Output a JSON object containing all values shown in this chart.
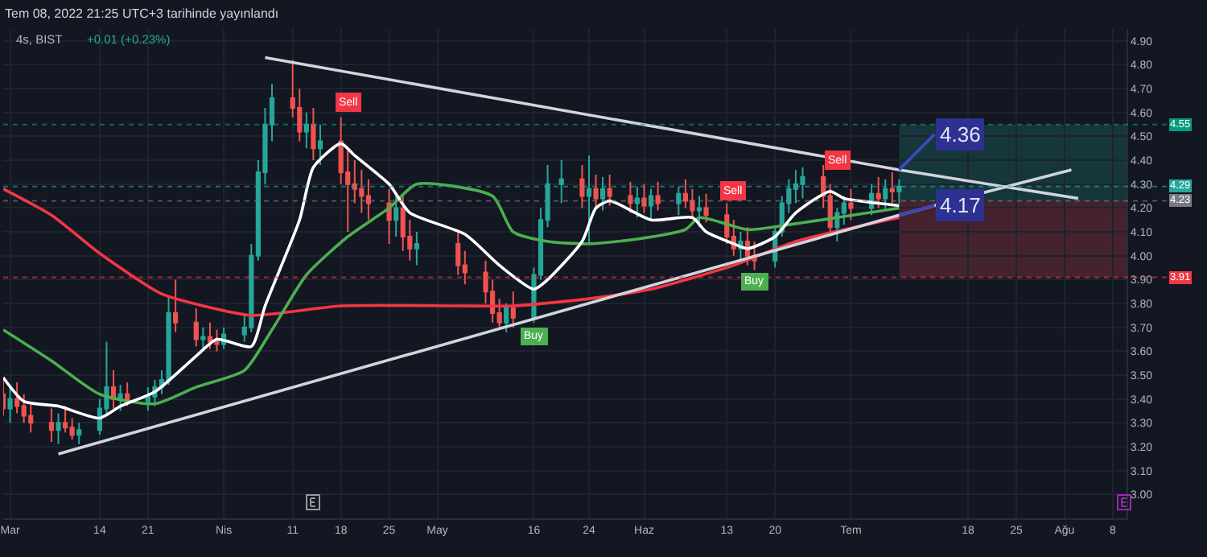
{
  "chart_data": {
    "type": "candlestick",
    "title": "Tem 08, 2022 21:25 UTC+3 tarihinde yayınlandı",
    "subtitle": "4s, BIST",
    "x": [
      "2022-02-28",
      "2022-03-01",
      "2022-03-02",
      "2022-03-03",
      "2022-03-04",
      "2022-03-07",
      "2022-03-08",
      "2022-03-09",
      "2022-03-10",
      "2022-03-11",
      "2022-03-14",
      "2022-03-15",
      "2022-03-16",
      "2022-03-17",
      "2022-03-18",
      "2022-03-21",
      "2022-03-22",
      "2022-03-23",
      "2022-03-24",
      "2022-03-25",
      "2022-03-28",
      "2022-03-29",
      "2022-03-30",
      "2022-03-31",
      "2022-04-01",
      "2022-04-04",
      "2022-04-05",
      "2022-04-06",
      "2022-04-07",
      "2022-04-08",
      "2022-04-11",
      "2022-04-12",
      "2022-04-13",
      "2022-04-14",
      "2022-04-15",
      "2022-04-18",
      "2022-04-19",
      "2022-04-20",
      "2022-04-21",
      "2022-04-22",
      "2022-04-25",
      "2022-04-26",
      "2022-04-27",
      "2022-04-28",
      "2022-04-29",
      "2022-05-05",
      "2022-05-06",
      "2022-05-09",
      "2022-05-10",
      "2022-05-11",
      "2022-05-12",
      "2022-05-13",
      "2022-05-16",
      "2022-05-17",
      "2022-05-18",
      "2022-05-20",
      "2022-05-23",
      "2022-05-24",
      "2022-05-25",
      "2022-05-26",
      "2022-05-27",
      "2022-05-30",
      "2022-05-31",
      "2022-06-01",
      "2022-06-02",
      "2022-06-03",
      "2022-06-06",
      "2022-06-07",
      "2022-06-08",
      "2022-06-09",
      "2022-06-10",
      "2022-06-13",
      "2022-06-14",
      "2022-06-15",
      "2022-06-16",
      "2022-06-17",
      "2022-06-20",
      "2022-06-21",
      "2022-06-22",
      "2022-06-23",
      "2022-06-24",
      "2022-06-27",
      "2022-06-28",
      "2022-06-29",
      "2022-06-30",
      "2022-07-01",
      "2022-07-04",
      "2022-07-05",
      "2022-07-06",
      "2022-07-07",
      "2022-07-08"
    ],
    "ohlc": [
      [
        3.42,
        3.48,
        3.33,
        3.36
      ],
      [
        3.36,
        3.45,
        3.3,
        3.4
      ],
      [
        3.4,
        3.47,
        3.34,
        3.37
      ],
      [
        3.37,
        3.42,
        3.3,
        3.33
      ],
      [
        3.33,
        3.38,
        3.26,
        3.3
      ],
      [
        3.3,
        3.36,
        3.22,
        3.27
      ],
      [
        3.27,
        3.34,
        3.21,
        3.3
      ],
      [
        3.3,
        3.37,
        3.26,
        3.28
      ],
      [
        3.28,
        3.32,
        3.23,
        3.25
      ],
      [
        3.25,
        3.3,
        3.21,
        3.27
      ],
      [
        3.27,
        3.4,
        3.25,
        3.36
      ],
      [
        3.36,
        3.64,
        3.34,
        3.45
      ],
      [
        3.45,
        3.52,
        3.36,
        3.4
      ],
      [
        3.4,
        3.46,
        3.35,
        3.42
      ],
      [
        3.42,
        3.47,
        3.37,
        3.39
      ],
      [
        3.39,
        3.45,
        3.35,
        3.41
      ],
      [
        3.41,
        3.48,
        3.37,
        3.45
      ],
      [
        3.45,
        3.52,
        3.42,
        3.48
      ],
      [
        3.48,
        3.83,
        3.46,
        3.76
      ],
      [
        3.76,
        3.9,
        3.68,
        3.72
      ],
      [
        3.72,
        3.78,
        3.62,
        3.65
      ],
      [
        3.65,
        3.7,
        3.6,
        3.66
      ],
      [
        3.66,
        3.72,
        3.61,
        3.64
      ],
      [
        3.64,
        3.69,
        3.6,
        3.63
      ],
      [
        3.63,
        3.7,
        3.61,
        3.67
      ],
      [
        3.67,
        3.75,
        3.64,
        3.7
      ],
      [
        3.7,
        4.05,
        3.68,
        4.0
      ],
      [
        4.0,
        4.4,
        3.98,
        4.35
      ],
      [
        4.35,
        4.62,
        4.3,
        4.55
      ],
      [
        4.55,
        4.72,
        4.48,
        4.66
      ],
      [
        4.66,
        4.82,
        4.58,
        4.62
      ],
      [
        4.62,
        4.7,
        4.48,
        4.52
      ],
      [
        4.52,
        4.6,
        4.45,
        4.55
      ],
      [
        4.55,
        4.62,
        4.4,
        4.45
      ],
      [
        4.45,
        4.55,
        4.38,
        4.48
      ],
      [
        4.48,
        4.58,
        4.3,
        4.35
      ],
      [
        4.35,
        4.45,
        4.1,
        4.3
      ],
      [
        4.3,
        4.4,
        4.22,
        4.28
      ],
      [
        4.28,
        4.36,
        4.18,
        4.25
      ],
      [
        4.25,
        4.32,
        4.15,
        4.22
      ],
      [
        4.22,
        4.28,
        4.05,
        4.15
      ],
      [
        4.15,
        4.25,
        4.08,
        4.2
      ],
      [
        4.2,
        4.26,
        4.02,
        4.08
      ],
      [
        4.08,
        4.15,
        3.98,
        4.03
      ],
      [
        4.03,
        4.1,
        3.96,
        4.05
      ],
      [
        4.05,
        4.1,
        3.92,
        3.96
      ],
      [
        3.96,
        4.02,
        3.88,
        3.93
      ],
      [
        3.93,
        3.98,
        3.8,
        3.85
      ],
      [
        3.85,
        3.9,
        3.72,
        3.76
      ],
      [
        3.76,
        3.82,
        3.69,
        3.72
      ],
      [
        3.72,
        3.8,
        3.68,
        3.78
      ],
      [
        3.78,
        3.85,
        3.7,
        3.74
      ],
      [
        3.74,
        3.95,
        3.72,
        3.92
      ],
      [
        3.92,
        4.2,
        3.9,
        4.15
      ],
      [
        4.15,
        4.38,
        4.12,
        4.3
      ],
      [
        4.3,
        4.4,
        4.22,
        4.32
      ],
      [
        4.32,
        4.38,
        4.2,
        4.25
      ],
      [
        4.25,
        4.42,
        4.05,
        4.28
      ],
      [
        4.28,
        4.34,
        4.2,
        4.24
      ],
      [
        4.24,
        4.33,
        4.19,
        4.28
      ],
      [
        4.28,
        4.34,
        4.21,
        4.25
      ],
      [
        4.25,
        4.31,
        4.18,
        4.22
      ],
      [
        4.22,
        4.29,
        4.16,
        4.24
      ],
      [
        4.24,
        4.3,
        4.18,
        4.21
      ],
      [
        4.21,
        4.28,
        4.15,
        4.25
      ],
      [
        4.25,
        4.31,
        4.19,
        4.22
      ],
      [
        4.22,
        4.29,
        4.17,
        4.26
      ],
      [
        4.26,
        4.32,
        4.2,
        4.23
      ],
      [
        4.23,
        4.28,
        4.16,
        4.19
      ],
      [
        4.19,
        4.25,
        4.12,
        4.2
      ],
      [
        4.2,
        4.26,
        4.14,
        4.17
      ],
      [
        4.17,
        4.22,
        4.05,
        4.08
      ],
      [
        4.08,
        4.15,
        4.0,
        4.03
      ],
      [
        4.03,
        4.1,
        3.97,
        4.06
      ],
      [
        4.06,
        4.12,
        3.96,
        4.0
      ],
      [
        4.0,
        4.06,
        3.94,
        3.98
      ],
      [
        3.98,
        4.12,
        3.95,
        4.1
      ],
      [
        4.1,
        4.25,
        4.08,
        4.22
      ],
      [
        4.22,
        4.32,
        4.18,
        4.28
      ],
      [
        4.28,
        4.36,
        4.22,
        4.3
      ],
      [
        4.3,
        4.37,
        4.24,
        4.33
      ],
      [
        4.33,
        4.38,
        4.2,
        4.25
      ],
      [
        4.25,
        4.3,
        4.08,
        4.12
      ],
      [
        4.12,
        4.2,
        4.06,
        4.18
      ],
      [
        4.18,
        4.25,
        4.13,
        4.22
      ],
      [
        4.22,
        4.28,
        4.15,
        4.2
      ],
      [
        4.2,
        4.3,
        4.17,
        4.26
      ],
      [
        4.26,
        4.33,
        4.2,
        4.24
      ],
      [
        4.24,
        4.32,
        4.19,
        4.28
      ],
      [
        4.28,
        4.35,
        4.22,
        4.27
      ],
      [
        4.27,
        4.32,
        4.22,
        4.29
      ]
    ],
    "series": [
      {
        "type": "line",
        "color": "#f23645",
        "x": [
          "2022-02-28",
          "2022-03-07",
          "2022-03-14",
          "2022-03-23",
          "2022-03-29",
          "2022-04-05",
          "2022-04-18",
          "2022-05-05",
          "2022-05-13",
          "2022-05-24",
          "2022-06-02",
          "2022-06-14",
          "2022-06-23",
          "2022-07-08"
        ],
        "values": [
          4.28,
          4.17,
          4.01,
          3.84,
          3.79,
          3.75,
          3.79,
          3.79,
          3.79,
          3.82,
          3.86,
          3.96,
          4.06,
          4.16
        ]
      },
      {
        "type": "line",
        "color": "#4caf50",
        "x": [
          "2022-02-28",
          "2022-03-07",
          "2022-03-14",
          "2022-03-22",
          "2022-03-28",
          "2022-04-04",
          "2022-04-08",
          "2022-04-13",
          "2022-04-19",
          "2022-04-25",
          "2022-04-29",
          "2022-05-10",
          "2022-05-13",
          "2022-05-18",
          "2022-05-24",
          "2022-05-31",
          "2022-06-07",
          "2022-06-09",
          "2022-06-16",
          "2022-06-22",
          "2022-06-29",
          "2022-07-08"
        ],
        "values": [
          3.69,
          3.56,
          3.42,
          3.38,
          3.45,
          3.52,
          3.69,
          3.92,
          4.08,
          4.2,
          4.3,
          4.25,
          4.1,
          4.06,
          4.05,
          4.07,
          4.11,
          4.16,
          4.11,
          4.13,
          4.16,
          4.2
        ]
      },
      {
        "type": "line",
        "color": "#ffffff",
        "x": [
          "2022-02-28",
          "2022-03-03",
          "2022-03-08",
          "2022-03-14",
          "2022-03-17",
          "2022-03-22",
          "2022-03-28",
          "2022-03-31",
          "2022-04-05",
          "2022-04-07",
          "2022-04-12",
          "2022-04-14",
          "2022-04-18",
          "2022-04-20",
          "2022-04-25",
          "2022-04-28",
          "2022-05-06",
          "2022-05-11",
          "2022-05-16",
          "2022-05-18",
          "2022-05-23",
          "2022-05-25",
          "2022-05-27",
          "2022-06-02",
          "2022-06-08",
          "2022-06-10",
          "2022-06-14",
          "2022-06-16",
          "2022-06-20",
          "2022-06-23",
          "2022-06-28",
          "2022-06-30",
          "2022-07-05",
          "2022-07-08"
        ],
        "values": [
          3.49,
          3.39,
          3.37,
          3.32,
          3.37,
          3.43,
          3.58,
          3.65,
          3.62,
          3.79,
          4.15,
          4.37,
          4.47,
          4.42,
          4.3,
          4.18,
          4.09,
          3.96,
          3.86,
          3.9,
          4.06,
          4.2,
          4.23,
          4.15,
          4.16,
          4.1,
          4.05,
          4.03,
          4.08,
          4.18,
          4.27,
          4.24,
          4.22,
          4.21
        ]
      },
      {
        "type": "line",
        "color": "#d1d4dc",
        "x": [
          "2022-04-07",
          "2022-07-08",
          "2022-08-03"
        ],
        "values": [
          4.83,
          4.36,
          4.24
        ],
        "value_labels": [
          null,
          "4.36",
          null
        ]
      },
      {
        "type": "line",
        "color": "#d1d4dc",
        "x": [
          "2022-03-08",
          "2022-07-08",
          "2022-08-02"
        ],
        "values": [
          3.17,
          4.17,
          4.36
        ],
        "value_labels": [
          null,
          "4.17",
          null
        ]
      }
    ],
    "xlim": [
      "2022-02-28",
      "2022-08-10"
    ],
    "xticks": [
      {
        "value": "2022-03-01",
        "label": "Mar"
      },
      {
        "value": "2022-03-14",
        "label": "14"
      },
      {
        "value": "2022-03-21",
        "label": "21"
      },
      {
        "value": "2022-04-01",
        "label": "Nis"
      },
      {
        "value": "2022-04-11",
        "label": "11"
      },
      {
        "value": "2022-04-18",
        "label": "18"
      },
      {
        "value": "2022-04-25",
        "label": "25"
      },
      {
        "value": "2022-05-02",
        "label": "May"
      },
      {
        "value": "2022-05-16",
        "label": "16"
      },
      {
        "value": "2022-05-24",
        "label": "24"
      },
      {
        "value": "2022-06-01",
        "label": "Haz"
      },
      {
        "value": "2022-06-13",
        "label": "13"
      },
      {
        "value": "2022-06-20",
        "label": "20"
      },
      {
        "value": "2022-07-01",
        "label": "Tem"
      },
      {
        "value": "2022-07-18",
        "label": "18"
      },
      {
        "value": "2022-07-25",
        "label": "25"
      },
      {
        "value": "2022-08-01",
        "label": "Ağu"
      },
      {
        "value": "2022-08-08",
        "label": "8"
      }
    ],
    "ylim": [
      2.9,
      4.95
    ],
    "yticks": [
      {
        "value": 3.0,
        "label": "3.00"
      },
      {
        "value": 3.1,
        "label": "3.10"
      },
      {
        "value": 3.2,
        "label": "3.20"
      },
      {
        "value": 3.3,
        "label": "3.30"
      },
      {
        "value": 3.4,
        "label": "3.40"
      },
      {
        "value": 3.5,
        "label": "3.50"
      },
      {
        "value": 3.6,
        "label": "3.60"
      },
      {
        "value": 3.7,
        "label": "3.70"
      },
      {
        "value": 3.8,
        "label": "3.80"
      },
      {
        "value": 3.9,
        "label": "3.90"
      },
      {
        "value": 4.0,
        "label": "4.00"
      },
      {
        "value": 4.1,
        "label": "4.10"
      },
      {
        "value": 4.2,
        "label": "4.20"
      },
      {
        "value": 4.3,
        "label": "4.30"
      },
      {
        "value": 4.4,
        "label": "4.40"
      },
      {
        "value": 4.5,
        "label": "4.50"
      },
      {
        "value": 4.6,
        "label": "4.60"
      },
      {
        "value": 4.7,
        "label": "4.70"
      },
      {
        "value": 4.8,
        "label": "4.80"
      },
      {
        "value": 4.9,
        "label": "4.90"
      }
    ],
    "ref_lines": [
      {
        "axis": "y",
        "value": 4.55,
        "label": "4.55",
        "color": "#089981",
        "line_style": "dotted"
      },
      {
        "axis": "y",
        "value": 4.29,
        "label": "4.29",
        "color": "#26a69a",
        "line_style": "dotted"
      },
      {
        "axis": "y",
        "value": 4.23,
        "label": "4.23",
        "color": "#787b86",
        "line_style": "dotted"
      },
      {
        "axis": "y",
        "value": 3.91,
        "label": "3.91",
        "color": "#f23645",
        "line_style": "dotted"
      }
    ],
    "bands": [
      {
        "axis": "y",
        "from": 4.23,
        "to": 4.55,
        "color": "#22ab94"
      },
      {
        "axis": "y",
        "from": 3.91,
        "to": 4.23,
        "color": "#f7525f"
      }
    ],
    "annotations": [
      "+0.01 (+0.23%)",
      {
        "text": "Sell",
        "x": "2022-04-19",
        "y": 4.64
      },
      {
        "text": "Buy",
        "x": "2022-05-16",
        "y": 3.66
      },
      {
        "text": "Sell",
        "x": "2022-06-14",
        "y": 4.27
      },
      {
        "text": "Buy",
        "x": "2022-06-17",
        "y": 3.89
      },
      {
        "text": "Sell",
        "x": "2022-06-29",
        "y": 4.4
      }
    ],
    "grid": true
  }
}
